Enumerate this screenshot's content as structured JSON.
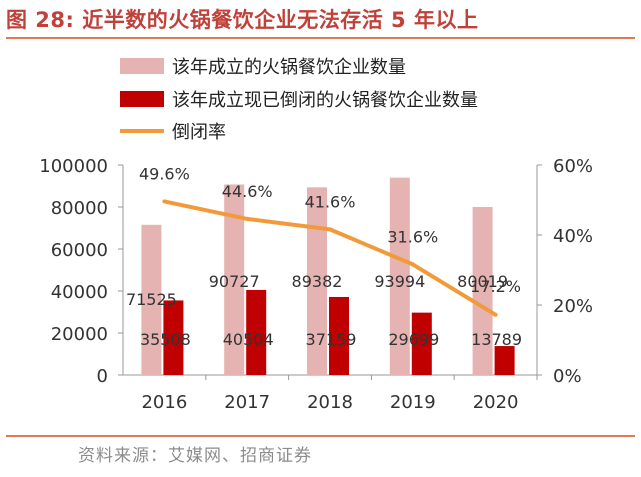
{
  "title": "图 28:  近半数的火锅餐饮企业无法存活 5 年以上",
  "source": "资料来源：艾媒网、招商证券",
  "colors": {
    "established": "#e6b3b3",
    "closed": "#c00000",
    "rate": "#f29a3a",
    "accent": "#c0413a"
  },
  "chart_data": {
    "type": "bar",
    "categories": [
      "2016",
      "2017",
      "2018",
      "2019",
      "2020"
    ],
    "series": [
      {
        "name": "该年成立的火锅餐饮企业数量",
        "kind": "bar",
        "axis": "left",
        "values": [
          71525,
          90727,
          89382,
          93994,
          80019
        ],
        "labels": [
          "71525",
          "90727",
          "89382",
          "93994",
          "80019"
        ]
      },
      {
        "name": "该年成立现已倒闭的火锅餐饮企业数量",
        "kind": "bar",
        "axis": "left",
        "values": [
          35508,
          40504,
          37159,
          29699,
          13789
        ],
        "labels": [
          "35508",
          "40504",
          "37159",
          "29699",
          "13789"
        ]
      },
      {
        "name": "倒闭率",
        "kind": "line",
        "axis": "right",
        "values": [
          49.6,
          44.6,
          41.6,
          31.6,
          17.2
        ],
        "labels": [
          "49.6%",
          "44.6%",
          "41.6%",
          "31.6%",
          "17.2%"
        ]
      }
    ],
    "y_left": {
      "lim": [
        0,
        100000
      ],
      "ticks": [
        "0",
        "20000",
        "40000",
        "60000",
        "80000",
        "100000"
      ]
    },
    "y_right": {
      "lim": [
        0,
        60
      ],
      "ticks": [
        "0%",
        "20%",
        "40%",
        "60%"
      ]
    },
    "legend_position": "top-left",
    "grid": false
  }
}
